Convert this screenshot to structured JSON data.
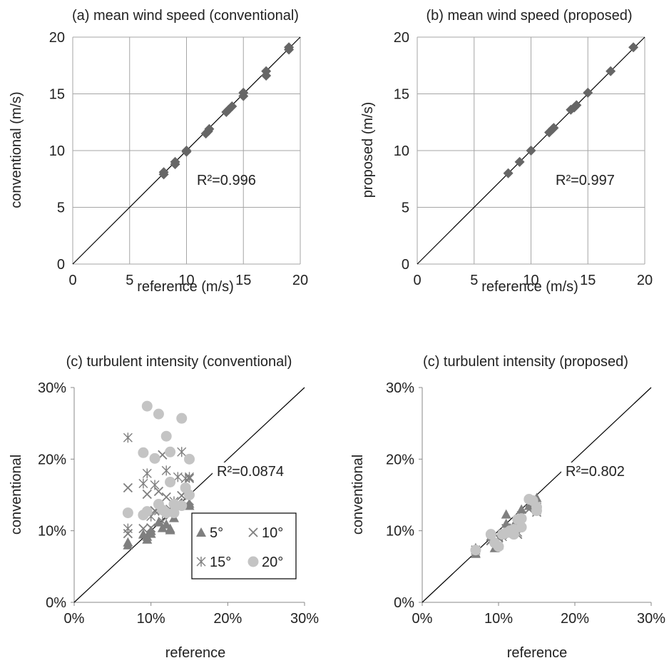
{
  "colors": {
    "marker_dark": "#666666",
    "marker_gray": "#8c8c8c",
    "marker_light": "#c4c4c4",
    "grid": "#a6a6a6",
    "axis": "#888888",
    "line": "#000000"
  },
  "chart_data": [
    {
      "type": "scatter",
      "title": "(a) mean wind speed (conventional)",
      "xlabel": "reference (m/s)",
      "ylabel": "conventional (m/s)",
      "xlim": [
        0,
        20
      ],
      "ylim": [
        0,
        20
      ],
      "xticks": [
        "0",
        "5",
        "10",
        "15",
        "20"
      ],
      "yticks": [
        "0",
        "5",
        "10",
        "15",
        "20"
      ],
      "grid": true,
      "diagonal": true,
      "annotation": "R²=0.996",
      "series": [
        {
          "marker": "diamond",
          "color": "#666666",
          "points": [
            [
              8,
              7.9
            ],
            [
              8,
              8.1
            ],
            [
              9,
              8.8
            ],
            [
              9,
              9
            ],
            [
              10,
              9.9
            ],
            [
              10,
              10
            ],
            [
              11.7,
              11.5
            ],
            [
              11.9,
              11.7
            ],
            [
              12,
              11.9
            ],
            [
              13.5,
              13.4
            ],
            [
              13.7,
              13.6
            ],
            [
              14,
              13.9
            ],
            [
              15,
              14.8
            ],
            [
              15,
              15.1
            ],
            [
              17,
              16.6
            ],
            [
              17,
              17
            ],
            [
              19,
              18.9
            ],
            [
              19,
              19.1
            ]
          ]
        }
      ]
    },
    {
      "type": "scatter",
      "title": "(b) mean wind speed (proposed)",
      "xlabel": "reference (m/s)",
      "ylabel": "proposed (m/s)",
      "xlim": [
        0,
        20
      ],
      "ylim": [
        0,
        20
      ],
      "xticks": [
        "0",
        "5",
        "10",
        "15",
        "20"
      ],
      "yticks": [
        "0",
        "5",
        "10",
        "15",
        "20"
      ],
      "grid": true,
      "diagonal": true,
      "annotation": "R²=0.997",
      "series": [
        {
          "marker": "diamond",
          "color": "#666666",
          "points": [
            [
              8,
              8
            ],
            [
              9,
              9
            ],
            [
              10,
              10
            ],
            [
              11.6,
              11.6
            ],
            [
              11.9,
              11.9
            ],
            [
              12,
              12
            ],
            [
              13.5,
              13.6
            ],
            [
              13.8,
              13.8
            ],
            [
              14,
              14
            ],
            [
              15,
              15.1
            ],
            [
              17,
              17
            ],
            [
              19,
              19.1
            ]
          ]
        }
      ]
    },
    {
      "type": "scatter",
      "title": "(c) turbulent intensity (conventional)",
      "xlabel": "reference",
      "ylabel": "conventional",
      "xlim": [
        0,
        30
      ],
      "ylim": [
        0,
        30
      ],
      "xticks": [
        "0%",
        "10%",
        "20%",
        "30%"
      ],
      "yticks": [
        "0%",
        "10%",
        "20%",
        "30%"
      ],
      "grid": false,
      "diagonal": true,
      "annotation": "R²=0.0874",
      "legend": "bottom-center",
      "series": [
        {
          "name": "5°",
          "marker": "triangle",
          "color": "#7f7f7f",
          "points": [
            [
              7,
              8
            ],
            [
              7,
              8.4
            ],
            [
              9,
              9.5
            ],
            [
              9.5,
              8.8
            ],
            [
              9.5,
              9.2
            ],
            [
              10,
              10
            ],
            [
              10,
              9.6
            ],
            [
              11,
              11.2
            ],
            [
              11.5,
              10.4
            ],
            [
              12,
              10.9
            ],
            [
              12.5,
              10.1
            ],
            [
              12.5,
              10.3
            ],
            [
              13,
              11.8
            ],
            [
              14,
              13.9
            ],
            [
              15,
              13.5
            ],
            [
              15,
              13.8
            ]
          ]
        },
        {
          "name": "10°",
          "marker": "x",
          "color": "#7f7f7f",
          "points": [
            [
              7,
              9.6
            ],
            [
              7,
              16
            ],
            [
              9,
              10.3
            ],
            [
              9.5,
              15.1
            ],
            [
              10,
              10.4
            ],
            [
              10.5,
              12.8
            ],
            [
              11,
              13.2
            ],
            [
              11,
              15.5
            ],
            [
              11.5,
              20.6
            ],
            [
              12,
              14.7
            ],
            [
              12.5,
              12.2
            ],
            [
              13,
              13.4
            ],
            [
              13.5,
              13.9
            ],
            [
              14,
              14.9
            ],
            [
              14.5,
              15.5
            ],
            [
              15,
              17.3
            ]
          ]
        },
        {
          "name": "15°",
          "marker": "asterisk",
          "color": "#7f7f7f",
          "points": [
            [
              7,
              23
            ],
            [
              7,
              10.3
            ],
            [
              9,
              16.6
            ],
            [
              9.5,
              18
            ],
            [
              10,
              12
            ],
            [
              10.5,
              16.4
            ],
            [
              11,
              12.8
            ],
            [
              11.5,
              11.3
            ],
            [
              12,
              18.4
            ],
            [
              12.5,
              13
            ],
            [
              13,
              14.1
            ],
            [
              13.5,
              17.5
            ],
            [
              14,
              21
            ],
            [
              14.5,
              17.3
            ],
            [
              15,
              17.5
            ],
            [
              15,
              14.2
            ]
          ]
        },
        {
          "name": "20°",
          "marker": "circle",
          "color": "#c4c4c4",
          "points": [
            [
              7,
              12.5
            ],
            [
              9,
              12.2
            ],
            [
              9,
              20.9
            ],
            [
              9.5,
              27.4
            ],
            [
              9.5,
              12.7
            ],
            [
              10.5,
              20.1
            ],
            [
              11,
              26.3
            ],
            [
              11,
              13.7
            ],
            [
              11.5,
              12.9
            ],
            [
              12,
              23.2
            ],
            [
              12,
              12.5
            ],
            [
              12.5,
              16.8
            ],
            [
              12.5,
              21
            ],
            [
              13,
              13.7
            ],
            [
              13,
              12.5
            ],
            [
              14,
              25.7
            ],
            [
              14,
              13.5
            ],
            [
              14.5,
              16
            ],
            [
              15,
              20
            ],
            [
              15,
              15
            ]
          ]
        }
      ]
    },
    {
      "type": "scatter",
      "title": "(c) turbulent intensity (proposed)",
      "xlabel": "reference",
      "ylabel": "conventional",
      "xlim": [
        0,
        30
      ],
      "ylim": [
        0,
        30
      ],
      "xticks": [
        "0%",
        "10%",
        "20%",
        "30%"
      ],
      "yticks": [
        "0%",
        "10%",
        "20%",
        "30%"
      ],
      "grid": false,
      "diagonal": true,
      "annotation": "R²=0.802",
      "series": [
        {
          "name": "5°",
          "marker": "triangle",
          "color": "#7f7f7f",
          "points": [
            [
              7,
              7.6
            ],
            [
              7,
              6.8
            ],
            [
              9,
              9.2
            ],
            [
              9.5,
              7.6
            ],
            [
              10,
              8
            ],
            [
              11,
              12.3
            ],
            [
              11,
              11
            ],
            [
              12,
              10.8
            ],
            [
              12.5,
              10.6
            ],
            [
              13,
              13
            ],
            [
              14,
              13.5
            ],
            [
              15,
              14.6
            ],
            [
              15,
              13.3
            ]
          ]
        },
        {
          "name": "10°",
          "marker": "x",
          "color": "#7f7f7f",
          "points": [
            [
              7,
              7.3
            ],
            [
              9,
              8.6
            ],
            [
              10,
              9
            ],
            [
              10.5,
              9.5
            ],
            [
              11,
              10.3
            ],
            [
              12,
              10.2
            ],
            [
              12.5,
              9.5
            ],
            [
              13,
              10.9
            ],
            [
              13,
              12.1
            ],
            [
              14,
              13
            ],
            [
              15,
              12.6
            ],
            [
              15,
              13.3
            ]
          ]
        },
        {
          "name": "15°",
          "marker": "asterisk",
          "color": "#7f7f7f",
          "points": [
            [
              7,
              7
            ],
            [
              9,
              8.7
            ],
            [
              9.5,
              8.5
            ],
            [
              10,
              9.1
            ],
            [
              10.5,
              9.2
            ],
            [
              11,
              9.6
            ],
            [
              12,
              10.4
            ],
            [
              12.5,
              9.8
            ],
            [
              13,
              11
            ],
            [
              14,
              13.5
            ],
            [
              14.5,
              14.1
            ],
            [
              15,
              12.9
            ]
          ]
        },
        {
          "name": "20°",
          "marker": "circle",
          "color": "#c4c4c4",
          "points": [
            [
              7,
              7.3
            ],
            [
              9,
              9.5
            ],
            [
              9.5,
              8.3
            ],
            [
              10,
              7.8
            ],
            [
              10.5,
              9.5
            ],
            [
              11,
              9.7
            ],
            [
              11.5,
              10
            ],
            [
              12,
              10.2
            ],
            [
              12,
              9.5
            ],
            [
              12.5,
              11.6
            ],
            [
              13,
              11.7
            ],
            [
              13,
              10.5
            ],
            [
              14,
              14.4
            ],
            [
              14.5,
              14.2
            ],
            [
              15,
              13.3
            ],
            [
              15,
              12.8
            ]
          ]
        }
      ]
    }
  ]
}
